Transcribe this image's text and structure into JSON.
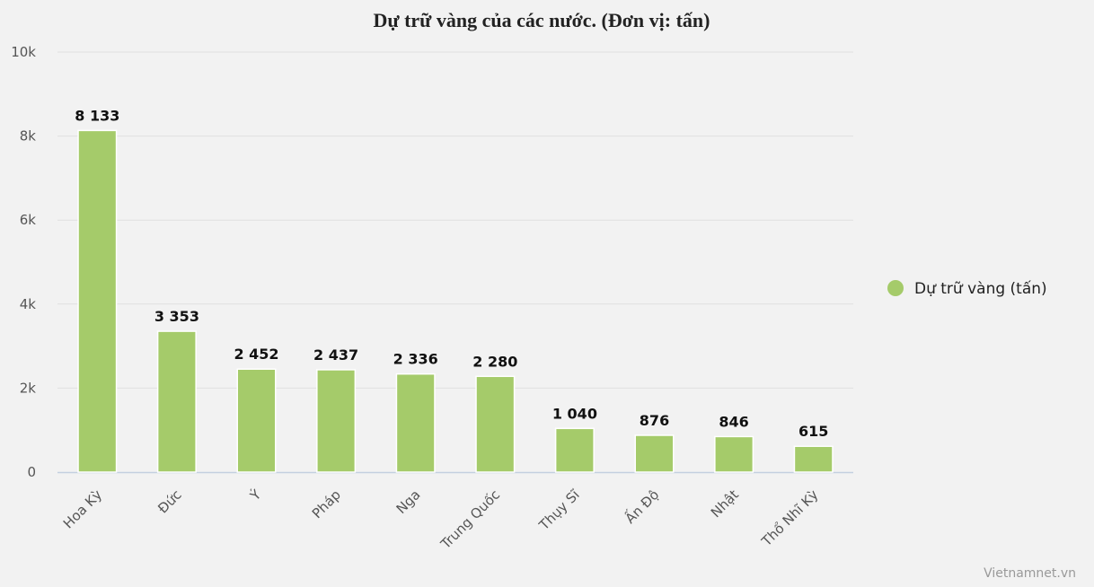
{
  "chart_data": {
    "type": "bar",
    "title": "Dự trữ vàng của các nước. (Đơn vị: tấn)",
    "categories": [
      "Hoa Kỳ",
      "Đức",
      "Ý",
      "Pháp",
      "Nga",
      "Trung Quốc",
      "Thụy Sĩ",
      "Ấn Độ",
      "Nhật",
      "Thổ Nhĩ Kỳ"
    ],
    "series": [
      {
        "name": "Dự trữ vàng (tấn)",
        "values": [
          8133,
          3353,
          2452,
          2437,
          2336,
          2280,
          1040,
          876,
          846,
          615
        ],
        "labels": [
          "8 133",
          "3 353",
          "2 452",
          "2 437",
          "2 336",
          "2 280",
          "1 040",
          "876",
          "846",
          "615"
        ],
        "color": "#a5cb6a"
      }
    ],
    "ylim": [
      0,
      10000
    ],
    "yticks": [
      0,
      2000,
      4000,
      6000,
      8000,
      10000
    ],
    "ytick_labels": [
      "0",
      "2k",
      "4k",
      "6k",
      "8k",
      "10k"
    ],
    "grid": true,
    "legend": "right"
  },
  "credit": "Vietnamnet.vn"
}
